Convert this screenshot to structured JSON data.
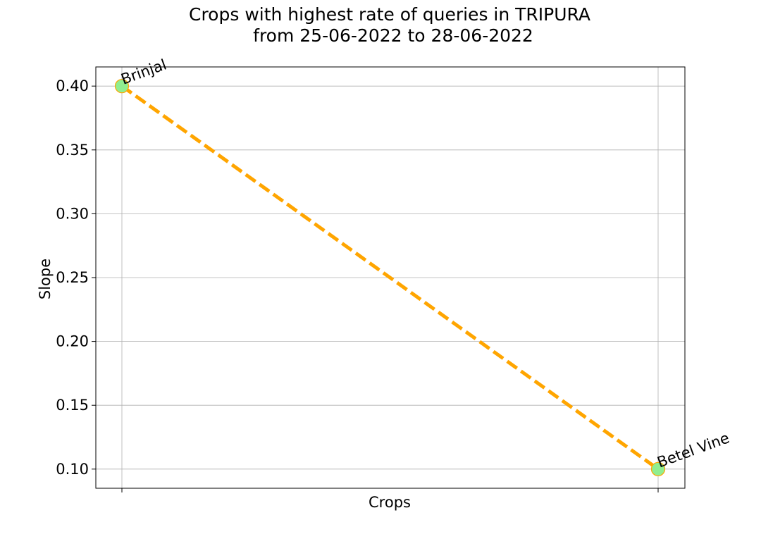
{
  "chart_data": {
    "type": "line",
    "title_line1": "Crops with highest rate of queries in TRIPURA",
    "title_line2": "from 25-06-2022 to 28-06-2022",
    "xlabel": "Crops",
    "ylabel": "Slope",
    "categories": [
      "Brinjal",
      "Betel Vine"
    ],
    "values": [
      0.4,
      0.1
    ],
    "ylim": [
      0.085,
      0.415
    ],
    "yticks": [
      0.1,
      0.15,
      0.2,
      0.25,
      0.3,
      0.35,
      0.4
    ],
    "ytick_labels": [
      "0.10",
      "0.15",
      "0.20",
      "0.25",
      "0.30",
      "0.35",
      "0.40"
    ],
    "grid": true,
    "line_color": "#FFA500",
    "line_style": "dashed",
    "marker_color": "#90EE90",
    "marker_edge_color": "#FFA500"
  }
}
